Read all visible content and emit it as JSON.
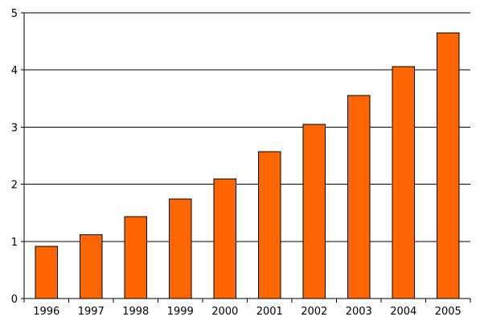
{
  "chart_data": {
    "type": "bar",
    "title": "",
    "xlabel": "",
    "ylabel": "",
    "categories": [
      "1996",
      "1997",
      "1998",
      "1999",
      "2000",
      "2001",
      "2002",
      "2003",
      "2004",
      "2005"
    ],
    "values": [
      0.91,
      1.12,
      1.43,
      1.74,
      2.09,
      2.57,
      3.05,
      3.55,
      4.06,
      4.65
    ],
    "ylim": [
      0,
      5
    ],
    "yticks": [
      "0",
      "1",
      "2",
      "3",
      "4",
      "5"
    ],
    "grid": "horizontal",
    "legend": "none",
    "bar_color": "#ff6600",
    "bar_edge_color": "#000000"
  }
}
